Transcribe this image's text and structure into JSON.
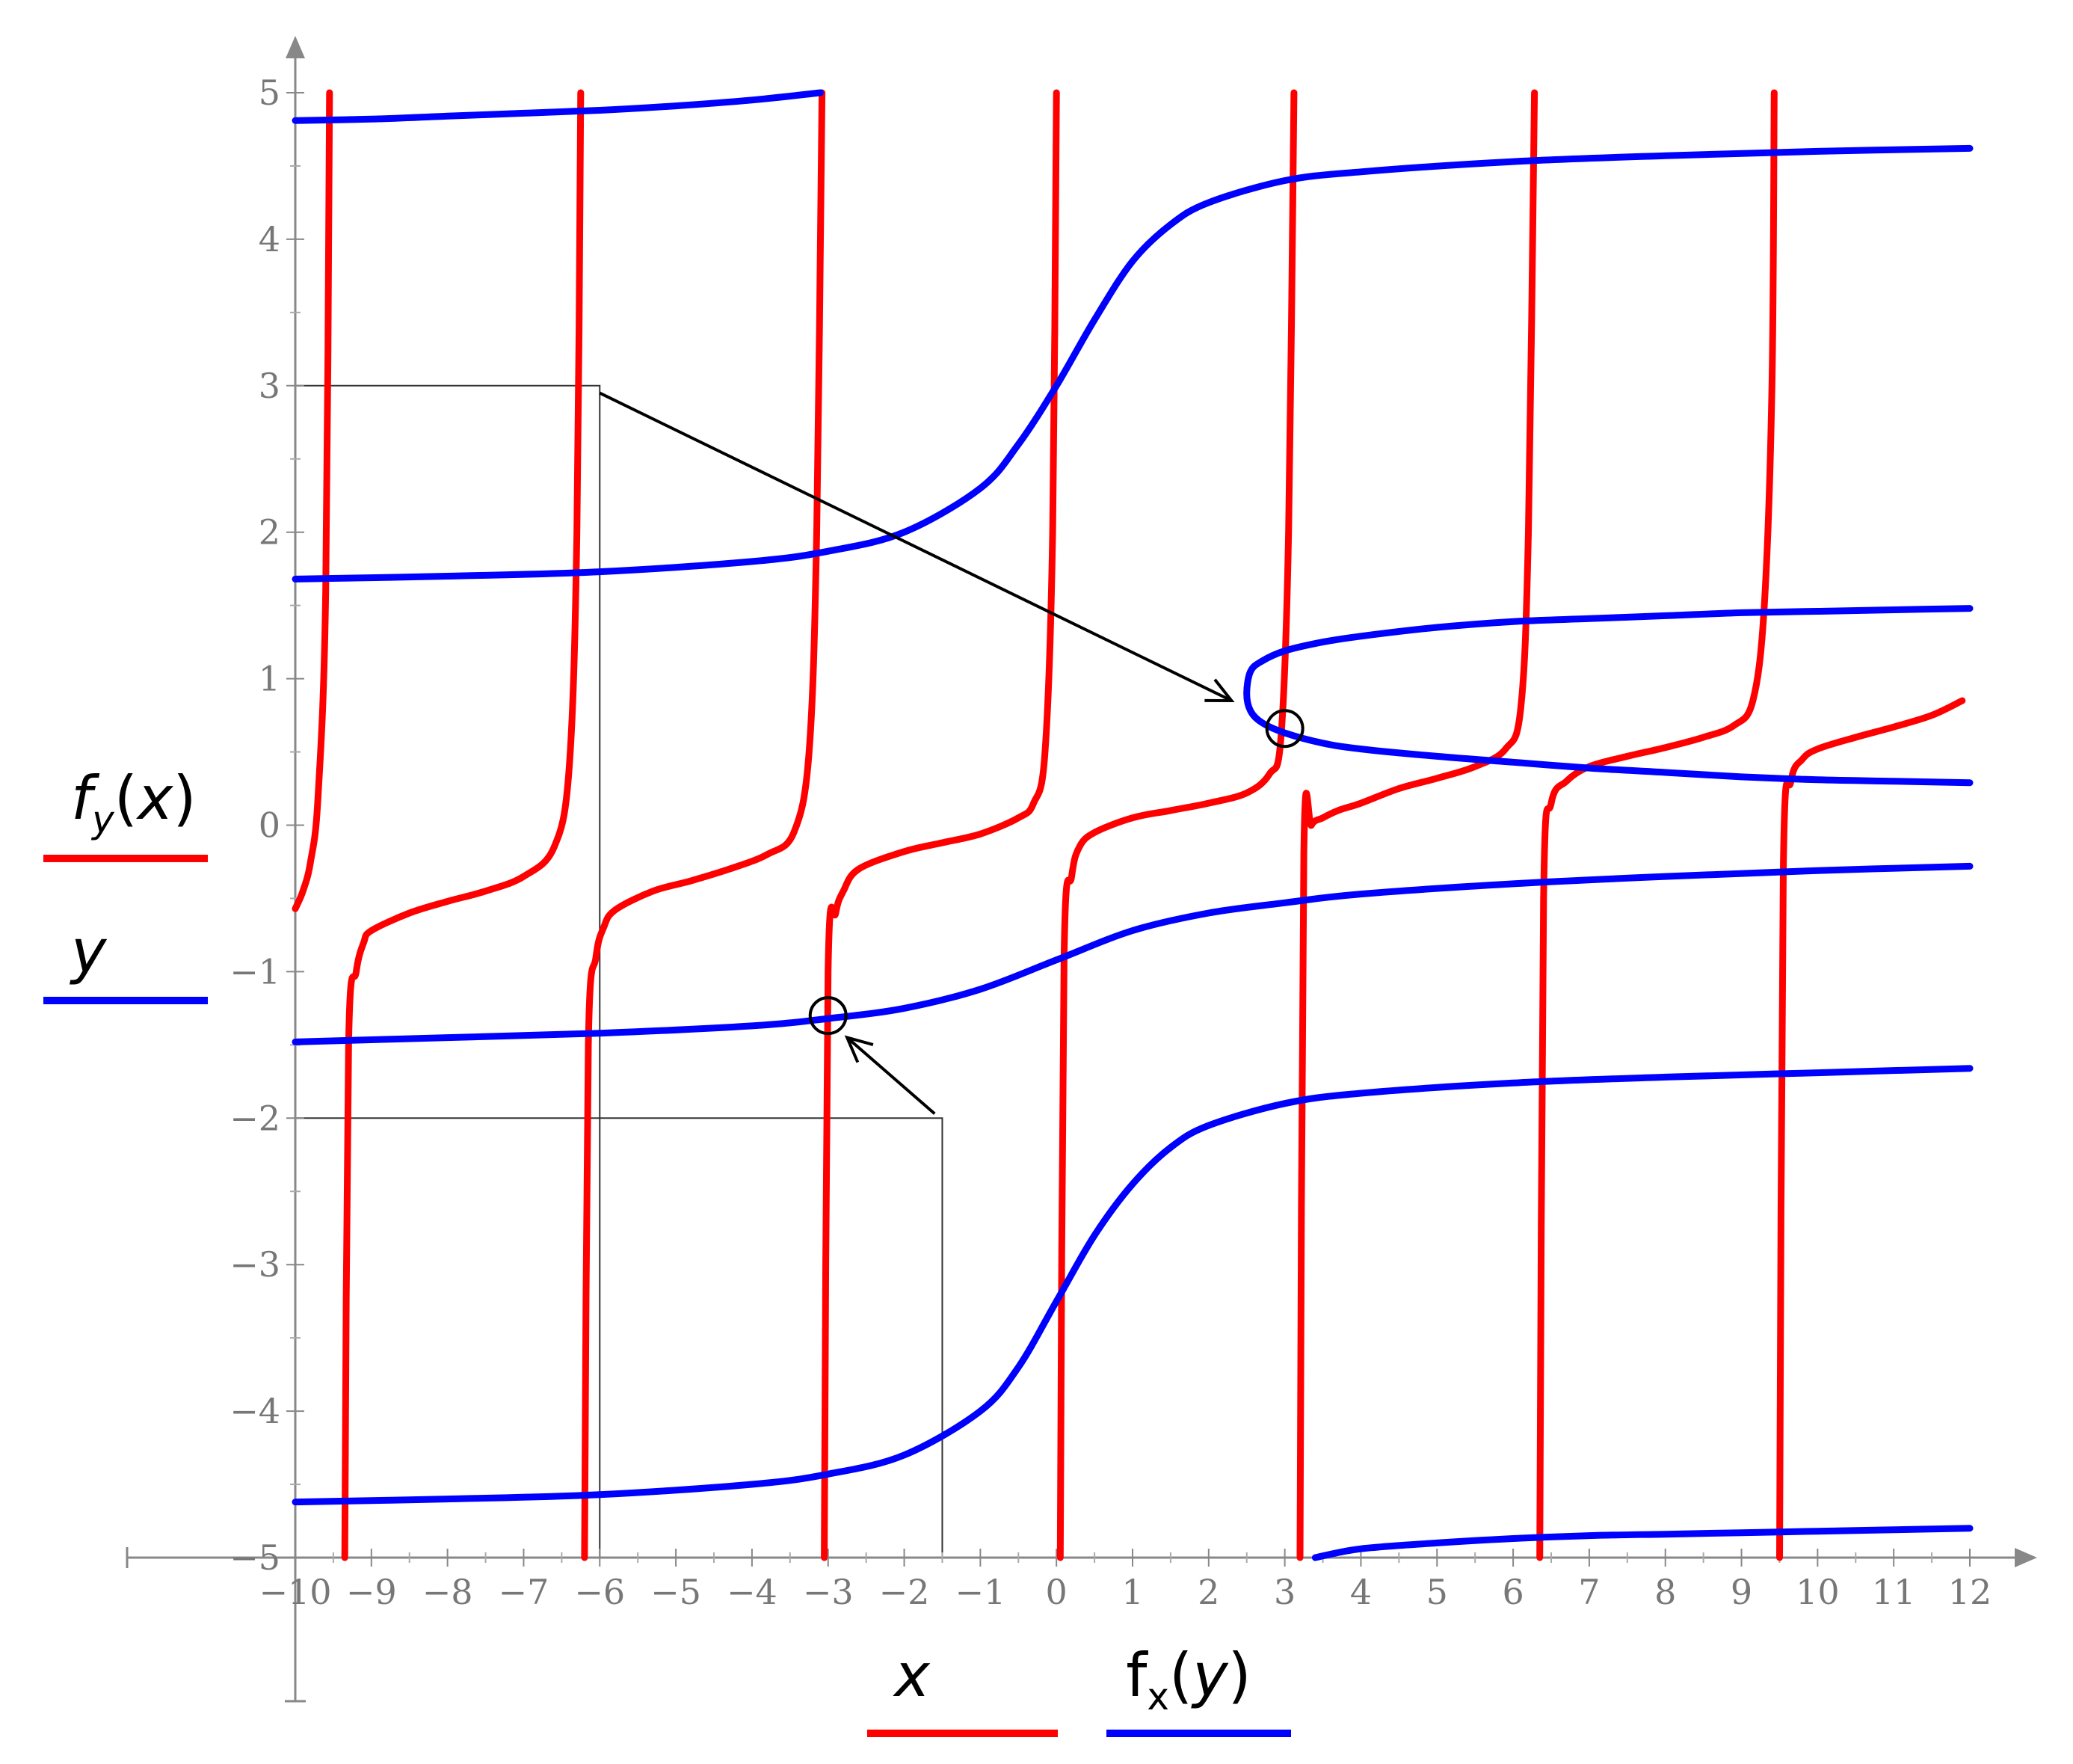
{
  "chart_data": {
    "type": "line",
    "title": "",
    "xlim": [
      -10,
      12
    ],
    "ylim": [
      -5,
      5
    ],
    "x_ticks": [
      "-10",
      "-9",
      "-8",
      "-7",
      "-6",
      "-5",
      "-4",
      "-3",
      "-2",
      "-1",
      "0",
      "1",
      "2",
      "3",
      "4",
      "5",
      "6",
      "7",
      "8",
      "9",
      "10",
      "11",
      "12"
    ],
    "y_ticks": [
      "5",
      "4",
      "3",
      "2",
      "1",
      "0",
      "-1",
      "-2",
      "-3",
      "-4",
      "-5"
    ],
    "grid": false,
    "legend": {
      "left": [
        {
          "label_fn": "f",
          "label_sub": "y",
          "label_arg": "x",
          "color": "#ff0000"
        },
        {
          "label_fn": "y",
          "label_sub": "",
          "label_arg": "",
          "color": "#0000ff"
        }
      ],
      "bottom": [
        {
          "label_fn": "x",
          "label_sub": "",
          "label_arg": "",
          "color": "#ff0000"
        },
        {
          "label_fn": "f",
          "label_sub": "x",
          "label_arg": "y",
          "color": "#0000ff"
        }
      ]
    },
    "series": [
      {
        "color": "#ff0000",
        "orientation": "y as function of x",
        "branches": [
          {
            "x": [
              -10,
              -9.9,
              -9.8,
              -9.7,
              -9.6,
              -9.55
            ],
            "y": [
              -0.57,
              -0.45,
              -0.25,
              0.2,
              1.6,
              5
            ]
          },
          {
            "x": [
              -9.35,
              -9.3,
              -9.2,
              -9.1,
              -9.0,
              -8.5,
              -8.0,
              -7.5,
              -7.0,
              -6.6,
              -6.4,
              -6.3,
              -6.25
            ],
            "y": [
              -5,
              -1.5,
              -1.0,
              -0.8,
              -0.72,
              -0.6,
              -0.52,
              -0.45,
              -0.35,
              -0.15,
              0.4,
              2.0,
              5
            ]
          },
          {
            "x": [
              -6.2,
              -6.15,
              -6.05,
              -5.95,
              -5.8,
              -5.3,
              -4.8,
              -4.3,
              -3.8,
              -3.45,
              -3.25,
              -3.15,
              -3.08
            ],
            "y": [
              -5,
              -1.5,
              -0.9,
              -0.7,
              -0.58,
              -0.45,
              -0.38,
              -0.3,
              -0.2,
              -0.05,
              0.5,
              2.0,
              5
            ]
          },
          {
            "x": [
              -3.05,
              -3.0,
              -2.9,
              -2.8,
              -2.6,
              -2.0,
              -1.5,
              -1.0,
              -0.5,
              -0.3,
              -0.15,
              -0.05,
              0.0
            ],
            "y": [
              -5,
              -1.0,
              -0.6,
              -0.45,
              -0.3,
              -0.18,
              -0.12,
              -0.06,
              0.05,
              0.15,
              0.5,
              2.0,
              5
            ]
          },
          {
            "x": [
              0.05,
              0.1,
              0.2,
              0.3,
              0.5,
              1.0,
              1.5,
              2.0,
              2.5,
              2.8,
              2.95,
              3.05,
              3.12
            ],
            "y": [
              -5,
              -0.9,
              -0.35,
              -0.15,
              -0.05,
              0.05,
              0.1,
              0.15,
              0.22,
              0.35,
              0.6,
              2.0,
              5
            ]
          },
          {
            "x": [
              3.2,
              3.25,
              3.35,
              3.5,
              3.7,
              4.0,
              4.5,
              5.0,
              5.5,
              5.9,
              6.1,
              6.2,
              6.28
            ],
            "y": [
              -5,
              -0.2,
              0.0,
              0.05,
              0.1,
              0.15,
              0.25,
              0.32,
              0.4,
              0.52,
              0.8,
              2.0,
              5
            ]
          },
          {
            "x": [
              6.35,
              6.4,
              6.5,
              6.7,
              7.0,
              7.5,
              8.0,
              8.5,
              8.9,
              9.15,
              9.3,
              9.4,
              9.43
            ],
            "y": [
              -5,
              -0.5,
              0.15,
              0.3,
              0.4,
              0.47,
              0.53,
              0.6,
              0.68,
              0.85,
              1.5,
              3.0,
              5
            ]
          },
          {
            "x": [
              9.5,
              9.55,
              9.65,
              9.8,
              10.0,
              10.5,
              11.0,
              11.5,
              11.9
            ],
            "y": [
              -5,
              -0.3,
              0.3,
              0.45,
              0.52,
              0.6,
              0.67,
              0.75,
              0.85
            ]
          }
        ]
      },
      {
        "color": "#0000ff",
        "orientation": "x as function of y",
        "branches": [
          {
            "x": [
              -10,
              -9,
              -8,
              -7,
              -6,
              -5,
              -4,
              -3.1
            ],
            "y": [
              4.81,
              4.82,
              4.84,
              4.86,
              4.88,
              4.91,
              4.95,
              5.0
            ]
          },
          {
            "x": [
              -10,
              -8,
              -6,
              -4,
              -3,
              -2,
              -1,
              -0.5,
              0,
              0.5,
              1,
              1.5,
              2,
              3,
              4,
              6,
              8,
              10,
              12
            ],
            "y": [
              1.68,
              1.7,
              1.73,
              1.8,
              1.87,
              2.0,
              2.3,
              2.6,
              3.0,
              3.45,
              3.85,
              4.1,
              4.25,
              4.4,
              4.46,
              4.53,
              4.57,
              4.6,
              4.62
            ]
          },
          {
            "x": [
              12,
              11,
              10,
              9,
              8,
              7,
              6,
              5,
              4,
              3.5,
              3,
              2.7,
              2.55,
              2.5,
              2.55,
              2.7,
              3.0,
              3.5,
              4,
              5,
              6,
              7,
              8,
              9,
              10,
              11,
              12
            ],
            "y": [
              1.48,
              1.47,
              1.46,
              1.45,
              1.43,
              1.41,
              1.39,
              1.35,
              1.29,
              1.25,
              1.19,
              1.12,
              1.05,
              0.9,
              0.78,
              0.7,
              0.63,
              0.56,
              0.52,
              0.47,
              0.43,
              0.39,
              0.36,
              0.33,
              0.31,
              0.3,
              0.29
            ]
          },
          {
            "x": [
              -10,
              -8,
              -6,
              -4,
              -3,
              -2,
              -1,
              0,
              1,
              2,
              3,
              4,
              6,
              8,
              10,
              12
            ],
            "y": [
              -1.48,
              -1.45,
              -1.42,
              -1.37,
              -1.32,
              -1.25,
              -1.12,
              -0.92,
              -0.72,
              -0.6,
              -0.53,
              -0.47,
              -0.4,
              -0.35,
              -0.31,
              -0.28
            ]
          },
          {
            "x": [
              -10,
              -8,
              -6,
              -4,
              -3,
              -2,
              -1,
              -0.5,
              0,
              0.5,
              1,
              1.5,
              2,
              3,
              4,
              6,
              8,
              10,
              12
            ],
            "y": [
              -4.62,
              -4.6,
              -4.57,
              -4.5,
              -4.43,
              -4.3,
              -4.0,
              -3.7,
              -3.25,
              -2.8,
              -2.45,
              -2.2,
              -2.05,
              -1.9,
              -1.83,
              -1.76,
              -1.72,
              -1.69,
              -1.66
            ]
          },
          {
            "x": [
              3.4,
              4,
              5,
              6,
              7,
              8,
              9,
              10,
              11,
              12
            ],
            "y": [
              -5.0,
              -4.94,
              -4.9,
              -4.87,
              -4.85,
              -4.84,
              -4.83,
              -4.82,
              -4.81,
              -4.8
            ]
          }
        ]
      }
    ],
    "annotations": {
      "markers": [
        {
          "x": 3.0,
          "y": 0.66
        },
        {
          "x": -3.0,
          "y": -1.3
        }
      ],
      "trace_lines": [
        {
          "points": [
            [
              -10,
              3
            ],
            [
              -6,
              3
            ],
            [
              -6,
              -5
            ]
          ],
          "color": "#333333"
        },
        {
          "points": [
            [
              -10,
              -2
            ],
            [
              -1.5,
              -2
            ],
            [
              -1.5,
              -5
            ]
          ],
          "color": "#333333"
        }
      ],
      "arrows": [
        {
          "from": [
            -6.0,
            2.95
          ],
          "to": [
            2.3,
            0.85
          ]
        },
        {
          "from": [
            -1.6,
            -1.97
          ],
          "to": [
            -2.75,
            -1.45
          ]
        }
      ]
    }
  }
}
